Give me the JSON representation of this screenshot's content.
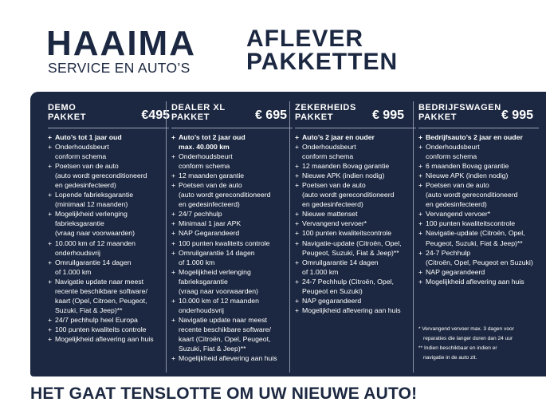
{
  "brand": {
    "name": "HAAIMA",
    "subtitle": "SERVICE EN AUTO’S"
  },
  "title": {
    "line1": "AFLEVER",
    "line2": "PAKKETTEN"
  },
  "colors": {
    "navy": "#1c2841",
    "text_on_navy": "#ffffff"
  },
  "bullet_icon": "plus-icon",
  "columns": [
    {
      "name_line1": "DEMO",
      "name_line2": "PAKKET",
      "price": "€495",
      "items": [
        {
          "bold": true,
          "lines": [
            "Auto’s tot 1 jaar oud"
          ]
        },
        {
          "lines": [
            "Onderhoudsbeurt",
            "conform schema"
          ]
        },
        {
          "lines": [
            "Poetsen van de auto",
            "(auto wordt gereconditioneerd",
            "en gedesinfecteerd)"
          ]
        },
        {
          "lines": [
            "Lopende fabrieksgarantie",
            "(minimaal 12 maanden)"
          ]
        },
        {
          "lines": [
            "Mogelijkheid verlenging",
            "fabrieksgarantie",
            "(vraag naar voorwaarden)"
          ]
        },
        {
          "lines": [
            "10.000 km of 12 maanden",
            "onderhoudsvrij"
          ]
        },
        {
          "lines": [
            "Omruilgarantie 14 dagen",
            "of 1.000 km"
          ]
        },
        {
          "lines": [
            "Navigatie update naar meest",
            "recente beschikbare software/",
            "kaart (Opel, Citroen,  Peugeot,",
            "Suzuki, Fiat & Jeep)**"
          ]
        },
        {
          "lines": [
            "24/7 pechhulp heel Europa"
          ]
        },
        {
          "lines": [
            "100 punten kwaliteits controle"
          ]
        },
        {
          "lines": [
            "Mogelijkheid aflevering aan huis"
          ]
        }
      ]
    },
    {
      "name_line1": "DEALER XL",
      "name_line2": "PAKKET",
      "price": "€ 695",
      "items": [
        {
          "bold": true,
          "lines": [
            "Auto’s tot 2 jaar oud",
            "max. 40.000 km"
          ]
        },
        {
          "lines": [
            "Onderhoudsbeurt",
            "conform schema"
          ]
        },
        {
          "lines": [
            "12 maanden garantie"
          ]
        },
        {
          "lines": [
            "Poetsen van de auto",
            "(auto wordt gereconditioneerd",
            "en gedesinfecteerd)"
          ]
        },
        {
          "lines": [
            "24/7 pechhulp"
          ]
        },
        {
          "lines": [
            "Minimaal 1 jaar APK"
          ]
        },
        {
          "lines": [
            "NAP Gegarandeerd"
          ]
        },
        {
          "lines": [
            "100 punten kwaliteits controle"
          ]
        },
        {
          "lines": [
            "Omruilgarantie 14 dagen",
            "of 1.000 km"
          ]
        },
        {
          "lines": [
            "Mogelijkheid verlenging",
            "fabrieksgarantie",
            "(vraag naar voorwaarden)"
          ]
        },
        {
          "lines": [
            "10.000 km of 12 maanden",
            "onderhoudsvrij"
          ]
        },
        {
          "lines": [
            "Navigatie update naar meest",
            "recente beschikbare software/",
            "kaart (Citroën, Opel, Peugeot,",
            "Suzuki, Fiat & Jeep)**"
          ]
        },
        {
          "lines": [
            "Mogelijkheid aflevering aan huis"
          ]
        }
      ]
    },
    {
      "name_line1": "ZEKERHEIDS",
      "name_line2": "PAKKET",
      "price": "€ 995",
      "items": [
        {
          "bold": true,
          "lines": [
            "Auto’s 2 jaar en ouder"
          ]
        },
        {
          "lines": [
            "Onderhoudsbeurt",
            "conform schema"
          ]
        },
        {
          "lines": [
            "12 maanden Bovag garantie"
          ]
        },
        {
          "lines": [
            "Nieuwe APK (indien nodig)"
          ]
        },
        {
          "lines": [
            "Poetsen van de auto",
            "(auto wordt gereconditioneerd",
            "en gedesinfecteerd)"
          ]
        },
        {
          "lines": [
            "Nieuwe mattenset"
          ]
        },
        {
          "lines": [
            "Vervangend vervoer*"
          ]
        },
        {
          "lines": [
            "100 punten kwaliteitscontrole"
          ]
        },
        {
          "lines": [
            "Navigatie-update (Citroën, Opel,",
            "Peugeot, Suzuki, Fiat & Jeep)**"
          ]
        },
        {
          "lines": [
            "Omruilgarantie 14 dagen",
            "of 1.000 km"
          ]
        },
        {
          "lines": [
            "24-7 Pechhulp (Citroën, Opel,",
            "Peugeot en Suzuki)"
          ]
        },
        {
          "lines": [
            "NAP gegarandeerd"
          ]
        },
        {
          "lines": [
            "Mogelijkheid aflevering aan huis"
          ]
        }
      ]
    },
    {
      "name_line1": "BEDRIJFSWAGEN",
      "name_line2": "PAKKET",
      "price": "€ 995",
      "items": [
        {
          "bold": true,
          "lines": [
            "Bedrijfsauto’s 2 jaar en ouder"
          ]
        },
        {
          "lines": [
            "Onderhoudsbeurt",
            "conform schema"
          ]
        },
        {
          "lines": [
            "6 maanden Bovag garantie"
          ]
        },
        {
          "lines": [
            "Nieuwe APK (indien nodig)"
          ]
        },
        {
          "lines": [
            "Poetsen van de auto",
            "(auto wordt gereconditioneerd",
            "en gedesinfecteerd)"
          ]
        },
        {
          "lines": [
            "Vervangend vervoer*"
          ]
        },
        {
          "lines": [
            "100 punten kwaliteitscontrole"
          ]
        },
        {
          "lines": [
            "Navigatie-update (Citroën, Opel,",
            "Peugeot, Suzuki, Fiat & Jeep)**"
          ]
        },
        {
          "lines": [
            "24-7 Pechhulp",
            "(Citroën, Opel, Peugeot en Suzuki)"
          ]
        },
        {
          "lines": [
            "NAP gegarandeerd"
          ]
        },
        {
          "lines": [
            "Mogelijkheid aflevering aan huis"
          ]
        }
      ],
      "footnotes": [
        "* Vervangend vervoer max. 3 dagen voor",
        "reparaties die langer duren dan 24 uur",
        "** Indien beschikbaar en indien er",
        "navigatie in de auto zit."
      ]
    }
  ],
  "tagline": "HET GAAT TENSLOTTE OM UW NIEUWE AUTO!"
}
